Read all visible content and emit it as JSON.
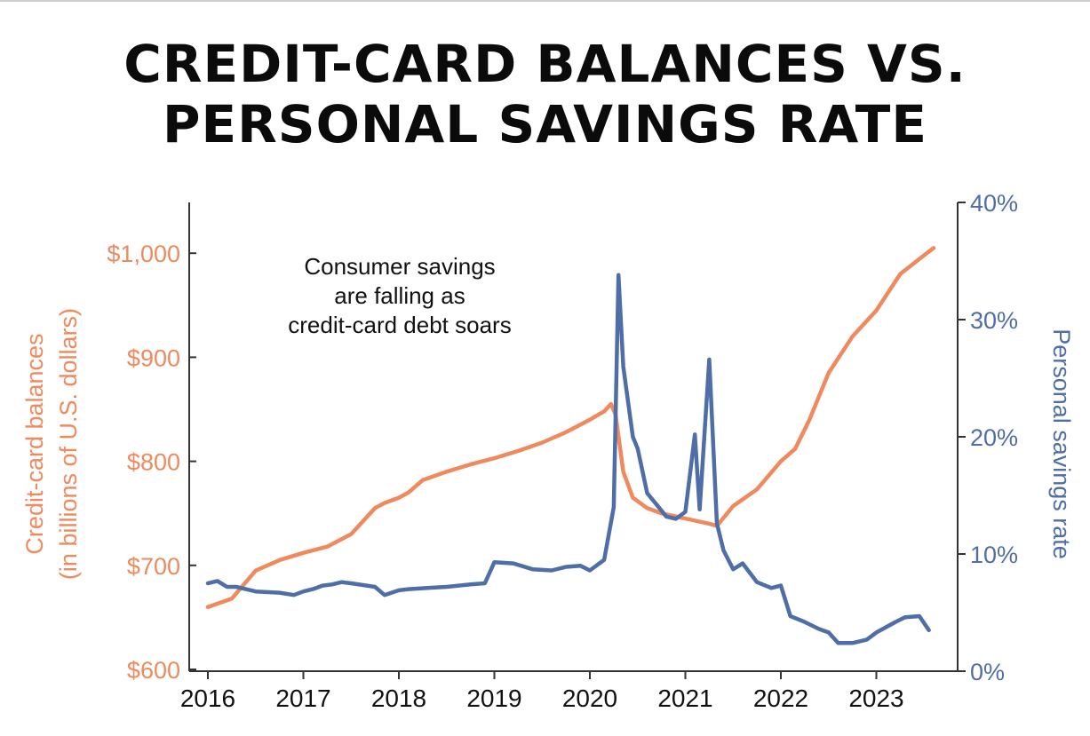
{
  "chart_data": {
    "type": "line",
    "title_lines": [
      "CREDIT-CARD BALANCES VS.",
      "PERSONAL SAVINGS RATE"
    ],
    "annotation_lines": [
      "Consumer savings",
      "are falling as",
      "credit-card debt soars"
    ],
    "left_axis": {
      "label_lines": [
        "Credit-card balances",
        "(in billions of U.S. dollars)"
      ],
      "range": [
        600,
        1045
      ],
      "ticks": [
        600,
        700,
        800,
        900,
        1000
      ],
      "tick_labels": [
        "$600",
        "$700",
        "$800",
        "$900",
        "$1,000"
      ]
    },
    "right_axis": {
      "label": "Personal savings rate",
      "range": [
        0,
        40
      ],
      "ticks": [
        0,
        10,
        20,
        30,
        40
      ],
      "tick_labels": [
        "0%",
        "10%",
        "20%",
        "30%",
        "40%"
      ]
    },
    "x_axis": {
      "range": [
        2016,
        2023.8
      ],
      "ticks": [
        2016,
        2017,
        2018,
        2019,
        2020,
        2021,
        2022,
        2023
      ],
      "tick_labels": [
        "2016",
        "2017",
        "2018",
        "2019",
        "2020",
        "2021",
        "2022",
        "2023"
      ]
    },
    "grid": false,
    "legend": "none",
    "series": [
      {
        "axis": "left",
        "color": "#ee8a5e",
        "x": [
          2016.0,
          2016.25,
          2016.5,
          2016.75,
          2017.0,
          2017.25,
          2017.5,
          2017.75,
          2017.85,
          2018.0,
          2018.1,
          2018.25,
          2018.5,
          2018.75,
          2019.0,
          2019.25,
          2019.5,
          2019.75,
          2020.0,
          2020.15,
          2020.22,
          2020.27,
          2020.35,
          2020.45,
          2020.6,
          2020.75,
          2021.0,
          2021.15,
          2021.25,
          2021.33,
          2021.5,
          2021.75,
          2022.0,
          2022.15,
          2022.3,
          2022.5,
          2022.75,
          2023.0,
          2023.25,
          2023.5,
          2023.6
        ],
        "y": [
          660,
          668,
          695,
          705,
          712,
          718,
          730,
          755,
          760,
          765,
          770,
          782,
          790,
          797,
          803,
          810,
          818,
          828,
          840,
          848,
          855,
          845,
          790,
          765,
          755,
          750,
          745,
          742,
          740,
          738,
          757,
          773,
          800,
          812,
          840,
          885,
          920,
          945,
          980,
          998,
          1005
        ]
      },
      {
        "axis": "right",
        "color": "#4f6ea8",
        "x": [
          2016.0,
          2016.1,
          2016.2,
          2016.3,
          2016.5,
          2016.75,
          2016.9,
          2017.0,
          2017.1,
          2017.2,
          2017.3,
          2017.4,
          2017.5,
          2017.75,
          2017.85,
          2018.0,
          2018.1,
          2018.3,
          2018.5,
          2018.75,
          2018.9,
          2019.0,
          2019.2,
          2019.4,
          2019.6,
          2019.75,
          2019.9,
          2020.0,
          2020.15,
          2020.25,
          2020.3,
          2020.35,
          2020.45,
          2020.5,
          2020.6,
          2020.7,
          2020.8,
          2020.9,
          2021.0,
          2021.1,
          2021.15,
          2021.25,
          2021.33,
          2021.4,
          2021.5,
          2021.6,
          2021.75,
          2021.9,
          2022.0,
          2022.1,
          2022.25,
          2022.4,
          2022.5,
          2022.6,
          2022.75,
          2022.9,
          2023.0,
          2023.2,
          2023.3,
          2023.45,
          2023.55
        ],
        "y": [
          7.5,
          7.7,
          7.2,
          7.2,
          6.8,
          6.7,
          6.5,
          6.8,
          7.0,
          7.3,
          7.4,
          7.6,
          7.5,
          7.2,
          6.5,
          6.9,
          7.0,
          7.1,
          7.2,
          7.4,
          7.5,
          9.3,
          9.2,
          8.7,
          8.6,
          8.9,
          9.0,
          8.6,
          9.5,
          14.0,
          33.8,
          26.0,
          20.0,
          19.0,
          15.2,
          14.2,
          13.2,
          13.0,
          13.6,
          20.2,
          13.8,
          26.6,
          12.6,
          10.3,
          8.7,
          9.2,
          7.6,
          7.1,
          7.3,
          4.7,
          4.2,
          3.6,
          3.3,
          2.4,
          2.4,
          2.7,
          3.3,
          4.2,
          4.6,
          4.7,
          3.5
        ]
      }
    ]
  }
}
